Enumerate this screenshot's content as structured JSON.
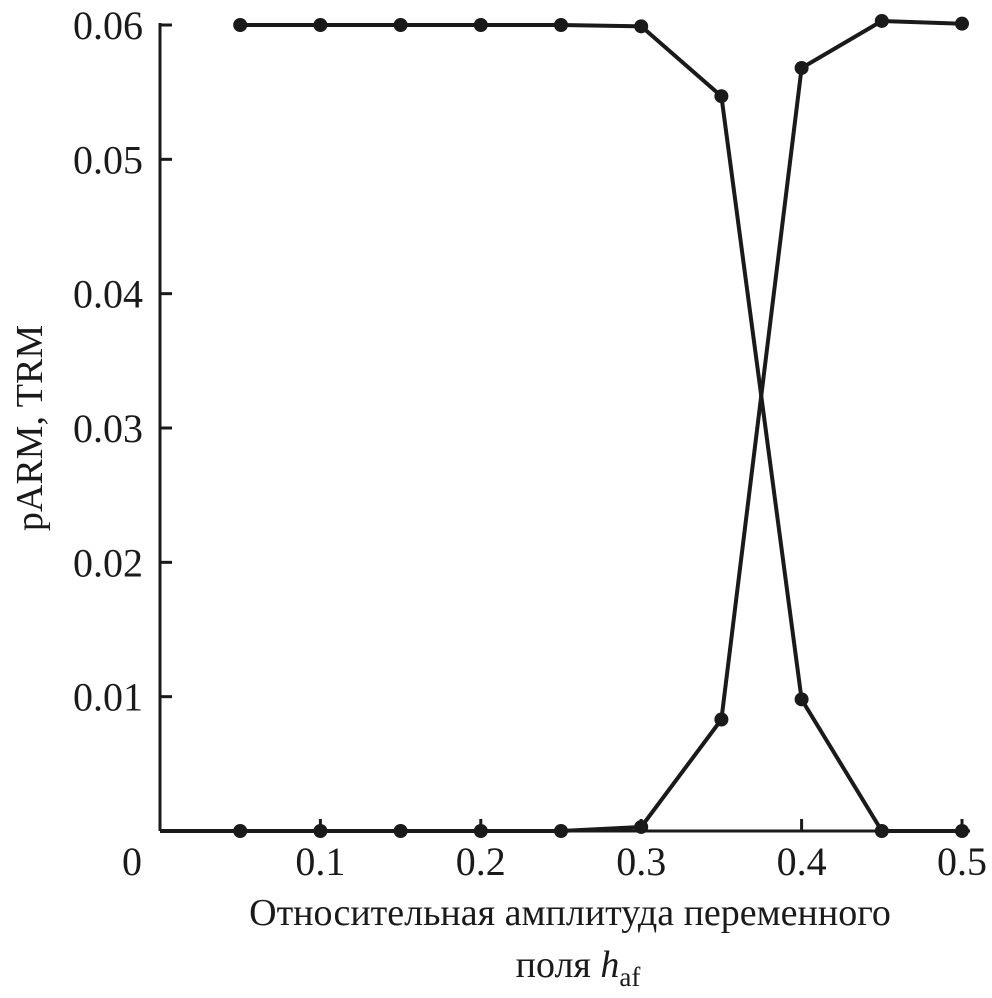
{
  "chart_data": {
    "type": "line",
    "ylabel": "pARM, TRM",
    "xlabel": {
      "line1": "Относительная амплитуда переменного",
      "line2_prefix": "поля ",
      "symbol": "h",
      "subscript": "af"
    },
    "xlim": [
      0,
      0.5
    ],
    "ylim": [
      0,
      0.06
    ],
    "x_ticks": [
      {
        "value": 0,
        "label": "0"
      },
      {
        "value": 0.1,
        "label": "0.1"
      },
      {
        "value": 0.2,
        "label": "0.2"
      },
      {
        "value": 0.3,
        "label": "0.3"
      },
      {
        "value": 0.4,
        "label": "0.4"
      },
      {
        "value": 0.5,
        "label": "0.5"
      }
    ],
    "y_ticks": [
      {
        "value": 0.01,
        "label": "0.01"
      },
      {
        "value": 0.02,
        "label": "0.02"
      },
      {
        "value": 0.03,
        "label": "0.03"
      },
      {
        "value": 0.04,
        "label": "0.04"
      },
      {
        "value": 0.05,
        "label": "0.05"
      },
      {
        "value": 0.06,
        "label": "0.06"
      }
    ],
    "grid": false,
    "legend": "none",
    "line_color": "#1a1a1a",
    "series": [
      {
        "x": [
          0.05,
          0.1,
          0.15,
          0.2,
          0.25,
          0.3,
          0.35,
          0.4,
          0.45,
          0.5
        ],
        "y": [
          0.06,
          0.06,
          0.06,
          0.06,
          0.06,
          0.0599,
          0.0547,
          0.0098,
          0.0,
          0.0
        ]
      },
      {
        "x": [
          0.0,
          0.05,
          0.1,
          0.15,
          0.2,
          0.25,
          0.3,
          0.35,
          0.4,
          0.45,
          0.5
        ],
        "y": [
          0.0,
          0.0,
          0.0,
          0.0,
          0.0,
          0.0,
          0.0003,
          0.0083,
          0.0568,
          0.0603,
          0.0601
        ],
        "markers_from_index": 1
      }
    ]
  }
}
